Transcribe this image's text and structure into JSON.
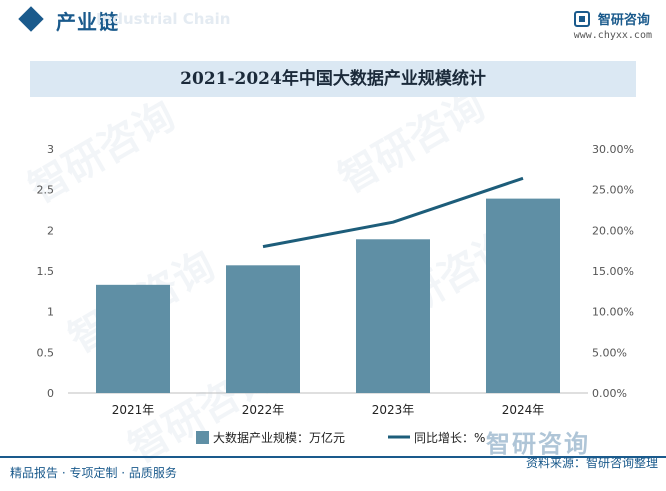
{
  "header": {
    "title": "产业链",
    "watermark": "Industrial Chain",
    "brand_name": "智研咨询",
    "brand_url": "www.chyxx.com"
  },
  "chart_data": {
    "type": "bar+line",
    "title": "2021-2024年中国大数据产业规模统计",
    "categories": [
      "2021年",
      "2022年",
      "2023年",
      "2024年"
    ],
    "series": [
      {
        "name": "大数据产业规模：万亿元",
        "kind": "bar",
        "axis": "left",
        "color": "#5f8fa5",
        "values": [
          1.33,
          1.57,
          1.89,
          2.39
        ]
      },
      {
        "name": "同比增长：%",
        "kind": "line",
        "axis": "right",
        "color": "#1d5d7a",
        "values": [
          null,
          18.0,
          21.0,
          26.4
        ]
      }
    ],
    "y_left": {
      "min": 0,
      "max": 3,
      "ticks": [
        "0",
        "0.5",
        "1",
        "1.5",
        "2",
        "2.5",
        "3"
      ]
    },
    "y_right": {
      "min": 0,
      "max": 30,
      "ticks": [
        "0.00%",
        "5.00%",
        "10.00%",
        "15.00%",
        "20.00%",
        "25.00%",
        "30.00%"
      ]
    },
    "grid": false,
    "legend_position": "bottom"
  },
  "watermark_text": "智研咨询",
  "bottom_brand": "智研咨询",
  "footer": {
    "left": "精品报告 · 专项定制 · 品质服务",
    "right": "资料来源：智研咨询整理"
  }
}
